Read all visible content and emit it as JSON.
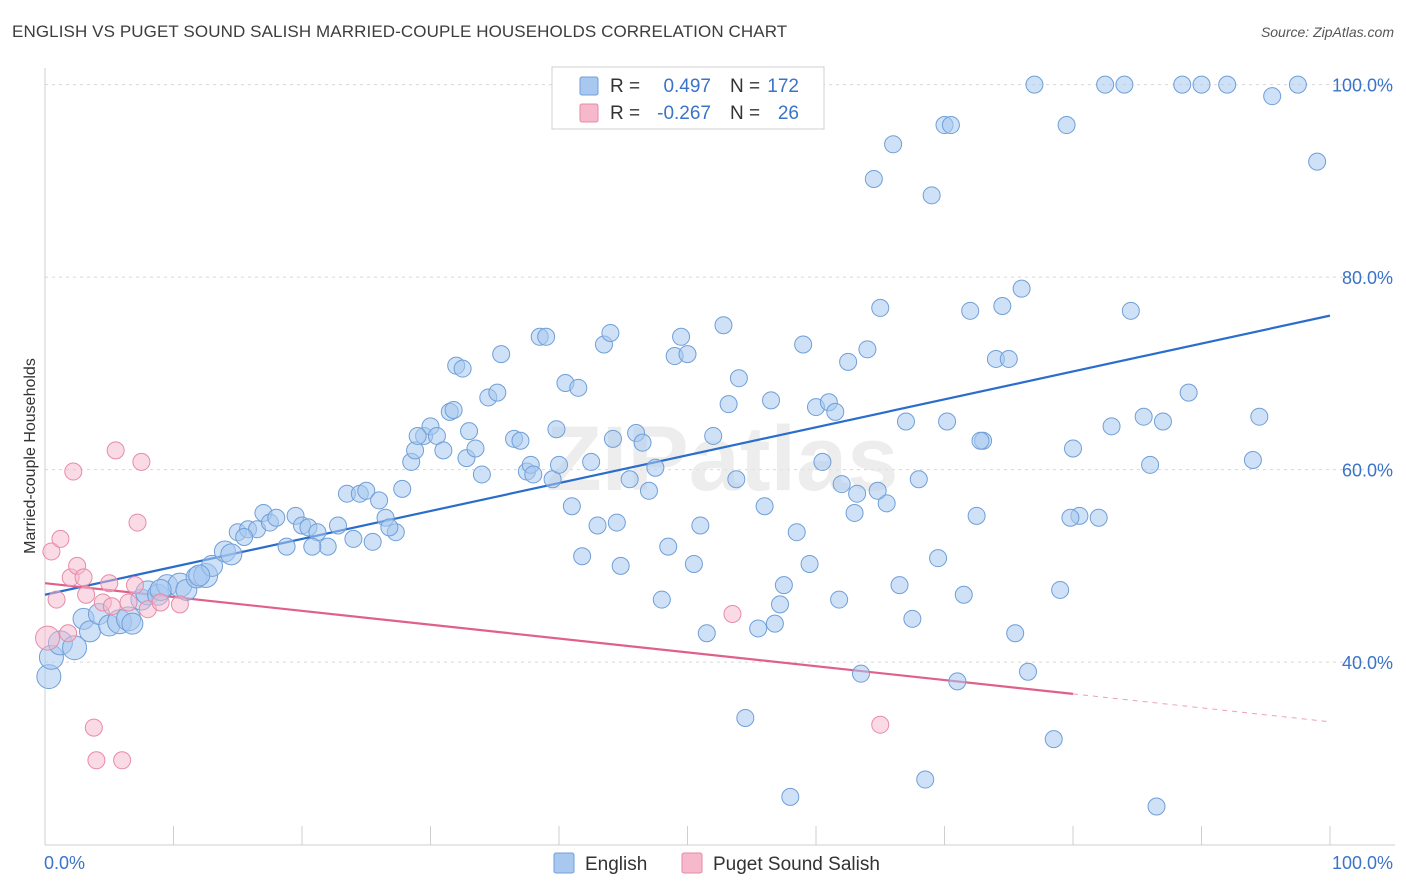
{
  "title": "ENGLISH VS PUGET SOUND SALISH MARRIED-COUPLE HOUSEHOLDS CORRELATION CHART",
  "source": "Source: ZipAtlas.com",
  "watermark": "ZIPatlas",
  "colors": {
    "english_fill": "#a8c8f0",
    "english_stroke": "#6f9fd8",
    "english_line": "#2a6dcc",
    "salish_fill": "#f6b8cb",
    "salish_stroke": "#e88aa8",
    "salish_line": "#e0608c",
    "value_text": "#3a74c8",
    "grid": "#d8d8d8"
  },
  "legend_top": [
    {
      "r_label": "R =",
      "r_value": "0.497",
      "n_label": "N =",
      "n_value": "172",
      "series": "english"
    },
    {
      "r_label": "R =",
      "r_value": "-0.267",
      "n_label": "N =",
      "n_value": "26",
      "series": "salish"
    }
  ],
  "legend_bottom": [
    {
      "label": "English",
      "series": "english"
    },
    {
      "label": "Puget Sound Salish",
      "series": "salish"
    }
  ],
  "chart_data": {
    "type": "scatter",
    "title": "ENGLISH VS PUGET SOUND SALISH MARRIED-COUPLE HOUSEHOLDS CORRELATION CHART",
    "xlabel": "",
    "ylabel": "Married-couple Households",
    "xlim": [
      0,
      100
    ],
    "ylim": [
      21,
      101
    ],
    "x_tick_labels": [
      {
        "value": 0,
        "label": "0.0%"
      },
      {
        "value": 100,
        "label": "100.0%"
      }
    ],
    "y_tick_labels": [
      {
        "value": 40,
        "label": "40.0%"
      },
      {
        "value": 60,
        "label": "60.0%"
      },
      {
        "value": 80,
        "label": "80.0%"
      },
      {
        "value": 100,
        "label": "100.0%"
      }
    ],
    "x_minor_ticks": [
      0,
      10,
      20,
      30,
      40,
      50,
      60,
      70,
      80,
      90,
      100
    ],
    "series": [
      {
        "name": "English",
        "key": "english",
        "R": 0.497,
        "N": 172,
        "trend": {
          "x0": 0,
          "y0": 47.0,
          "x1": 100,
          "y1": 76.0
        },
        "points": [
          [
            0.3,
            38.5,
            3
          ],
          [
            0.5,
            40.5,
            3
          ],
          [
            1.2,
            42.0,
            3
          ],
          [
            2.3,
            41.5,
            3
          ],
          [
            3.0,
            44.5,
            2
          ],
          [
            3.5,
            43.2,
            2
          ],
          [
            4.2,
            45.0,
            2
          ],
          [
            5.0,
            43.8,
            2
          ],
          [
            5.8,
            44.2,
            3
          ],
          [
            6.5,
            44.5,
            3
          ],
          [
            7.5,
            46.5,
            2
          ],
          [
            8.0,
            47.2,
            3
          ],
          [
            8.8,
            47.0,
            2
          ],
          [
            9.5,
            48.0,
            2
          ],
          [
            10.5,
            48.0,
            3
          ],
          [
            11.0,
            47.5,
            2
          ],
          [
            11.8,
            48.8,
            2
          ],
          [
            12.5,
            49.0,
            3
          ],
          [
            13.0,
            50.0,
            2
          ],
          [
            14.0,
            51.5,
            2
          ],
          [
            14.5,
            51.2,
            2
          ],
          [
            15.0,
            53.5,
            1
          ],
          [
            15.8,
            53.8,
            1
          ],
          [
            16.5,
            53.8,
            1
          ],
          [
            17.0,
            55.5,
            1
          ],
          [
            17.5,
            54.5,
            1
          ],
          [
            18.0,
            55.0,
            1
          ],
          [
            18.8,
            52.0,
            1
          ],
          [
            19.5,
            55.2,
            1
          ],
          [
            20.0,
            54.2,
            1
          ],
          [
            20.5,
            54.0,
            1
          ],
          [
            21.2,
            53.5,
            1
          ],
          [
            22.0,
            52.0,
            1
          ],
          [
            22.8,
            54.2,
            1
          ],
          [
            23.5,
            57.5,
            1
          ],
          [
            24.0,
            52.8,
            1
          ],
          [
            24.5,
            57.5,
            1
          ],
          [
            25.0,
            57.8,
            1
          ],
          [
            25.5,
            52.5,
            1
          ],
          [
            26.0,
            56.8,
            1
          ],
          [
            26.5,
            55.0,
            1
          ],
          [
            27.3,
            53.5,
            1
          ],
          [
            27.8,
            58.0,
            1
          ],
          [
            28.5,
            60.8,
            1
          ],
          [
            28.8,
            62.0,
            1
          ],
          [
            29.5,
            63.5,
            1
          ],
          [
            30.0,
            64.5,
            1
          ],
          [
            30.5,
            63.5,
            1
          ],
          [
            31.0,
            62.0,
            1
          ],
          [
            31.5,
            66.0,
            1
          ],
          [
            31.8,
            66.2,
            1
          ],
          [
            32.0,
            70.8,
            1
          ],
          [
            32.5,
            70.5,
            1
          ],
          [
            32.8,
            61.2,
            1
          ],
          [
            33.5,
            62.2,
            1
          ],
          [
            34.0,
            59.5,
            1
          ],
          [
            34.5,
            67.5,
            1
          ],
          [
            35.2,
            68.0,
            1
          ],
          [
            35.5,
            72.0,
            1
          ],
          [
            36.5,
            63.2,
            1
          ],
          [
            37.0,
            63.0,
            1
          ],
          [
            37.5,
            59.8,
            1
          ],
          [
            37.8,
            60.5,
            1
          ],
          [
            38.5,
            73.8,
            1
          ],
          [
            39.0,
            73.8,
            1
          ],
          [
            39.5,
            59.0,
            1
          ],
          [
            39.8,
            64.2,
            1
          ],
          [
            40.5,
            69.0,
            1
          ],
          [
            41.0,
            56.2,
            1
          ],
          [
            41.5,
            68.5,
            1
          ],
          [
            41.8,
            51.0,
            1
          ],
          [
            42.5,
            60.8,
            1
          ],
          [
            43.0,
            54.2,
            1
          ],
          [
            43.5,
            73.0,
            1
          ],
          [
            44.0,
            74.2,
            1
          ],
          [
            44.2,
            63.2,
            1
          ],
          [
            44.5,
            54.5,
            1
          ],
          [
            44.8,
            50.0,
            1
          ],
          [
            45.5,
            59.0,
            1
          ],
          [
            46.0,
            63.8,
            1
          ],
          [
            46.5,
            62.8,
            1
          ],
          [
            47.0,
            57.8,
            1
          ],
          [
            47.5,
            60.2,
            1
          ],
          [
            48.0,
            46.5,
            1
          ],
          [
            48.5,
            52.0,
            1
          ],
          [
            49.0,
            71.8,
            1
          ],
          [
            49.5,
            73.8,
            1
          ],
          [
            50.0,
            72.0,
            1
          ],
          [
            50.5,
            50.2,
            1
          ],
          [
            51.0,
            54.2,
            1
          ],
          [
            51.5,
            43.0,
            1
          ],
          [
            52.0,
            63.5,
            1
          ],
          [
            52.8,
            75.0,
            1
          ],
          [
            53.2,
            66.8,
            1
          ],
          [
            53.8,
            59.0,
            1
          ],
          [
            54.0,
            69.5,
            1
          ],
          [
            54.5,
            34.2,
            1
          ],
          [
            55.5,
            43.5,
            1
          ],
          [
            56.0,
            56.2,
            1
          ],
          [
            56.5,
            67.2,
            1
          ],
          [
            56.8,
            44.0,
            1
          ],
          [
            57.2,
            46.0,
            1
          ],
          [
            57.5,
            48.0,
            1
          ],
          [
            58.5,
            53.5,
            1
          ],
          [
            59.0,
            73.0,
            1
          ],
          [
            59.5,
            50.2,
            1
          ],
          [
            60.0,
            66.5,
            1
          ],
          [
            60.5,
            60.8,
            1
          ],
          [
            61.0,
            67.0,
            1
          ],
          [
            61.5,
            66.0,
            1
          ],
          [
            62.0,
            58.5,
            1
          ],
          [
            62.5,
            71.2,
            1
          ],
          [
            63.0,
            55.5,
            1
          ],
          [
            63.5,
            38.8,
            1
          ],
          [
            64.0,
            72.5,
            1
          ],
          [
            64.5,
            90.2,
            1
          ],
          [
            65.0,
            76.8,
            1
          ],
          [
            65.5,
            56.5,
            1
          ],
          [
            66.0,
            93.8,
            1
          ],
          [
            66.5,
            48.0,
            1
          ],
          [
            67.0,
            65.0,
            1
          ],
          [
            67.5,
            44.5,
            1
          ],
          [
            68.0,
            59.0,
            1
          ],
          [
            68.5,
            27.8,
            1
          ],
          [
            69.0,
            88.5,
            1
          ],
          [
            69.5,
            50.8,
            1
          ],
          [
            70.0,
            95.8,
            1
          ],
          [
            70.5,
            95.8,
            1
          ],
          [
            71.0,
            38.0,
            1
          ],
          [
            72.0,
            76.5,
            1
          ],
          [
            72.5,
            55.2,
            1
          ],
          [
            73.0,
            63.0,
            1
          ],
          [
            74.0,
            71.5,
            1
          ],
          [
            74.5,
            77.0,
            1
          ],
          [
            75.0,
            71.5,
            1
          ],
          [
            75.5,
            43.0,
            1
          ],
          [
            76.0,
            78.8,
            1
          ],
          [
            76.5,
            39.0,
            1
          ],
          [
            77.0,
            100.0,
            1
          ],
          [
            78.5,
            32.0,
            1
          ],
          [
            79.0,
            47.5,
            1
          ],
          [
            79.5,
            95.8,
            1
          ],
          [
            80.0,
            62.2,
            1
          ],
          [
            80.5,
            55.2,
            1
          ],
          [
            82.5,
            100.0,
            1
          ],
          [
            83.0,
            64.5,
            1
          ],
          [
            84.0,
            100.0,
            1
          ],
          [
            84.5,
            76.5,
            1
          ],
          [
            86.5,
            25.0,
            1
          ],
          [
            87.0,
            65.0,
            1
          ],
          [
            88.5,
            100.0,
            1
          ],
          [
            89.0,
            68.0,
            1
          ],
          [
            90.0,
            100.0,
            1
          ],
          [
            92.0,
            100.0,
            1
          ],
          [
            94.0,
            61.0,
            1
          ],
          [
            94.5,
            65.5,
            1
          ],
          [
            95.5,
            98.8,
            1
          ],
          [
            97.5,
            100.0,
            1
          ],
          [
            99.0,
            92.0,
            1
          ],
          [
            58.0,
            26.0,
            1
          ],
          [
            61.8,
            46.5,
            1
          ],
          [
            63.2,
            57.5,
            1
          ],
          [
            64.8,
            57.8,
            1
          ],
          [
            70.2,
            65.0,
            1
          ],
          [
            71.5,
            47.0,
            1
          ],
          [
            72.8,
            63.0,
            1
          ],
          [
            79.8,
            55.0,
            1
          ],
          [
            82.0,
            55.0,
            1
          ],
          [
            85.5,
            65.5,
            1
          ],
          [
            86.0,
            60.5,
            1
          ],
          [
            40.0,
            60.5,
            1
          ],
          [
            38.0,
            59.5,
            1
          ],
          [
            33.0,
            64.0,
            1
          ],
          [
            29.0,
            63.5,
            1
          ],
          [
            26.8,
            54.0,
            1
          ],
          [
            20.8,
            52.0,
            1
          ],
          [
            15.5,
            53.0,
            1
          ],
          [
            12.0,
            49.0,
            2
          ],
          [
            9.0,
            47.5,
            2
          ],
          [
            6.8,
            44.0,
            2
          ]
        ]
      },
      {
        "name": "Puget Sound Salish",
        "key": "salish",
        "R": -0.267,
        "N": 26,
        "trend": {
          "x0": 0,
          "y0": 48.2,
          "x1": 80,
          "y1": 36.7,
          "dash_x1": 100,
          "dash_y1": 33.8
        },
        "points": [
          [
            0.2,
            42.5,
            3
          ],
          [
            0.5,
            51.5,
            1
          ],
          [
            0.9,
            46.5,
            1
          ],
          [
            1.2,
            52.8,
            1
          ],
          [
            1.8,
            43.0,
            1
          ],
          [
            2.0,
            48.8,
            1
          ],
          [
            2.2,
            59.8,
            1
          ],
          [
            2.5,
            50.0,
            1
          ],
          [
            3.0,
            48.8,
            1
          ],
          [
            3.2,
            47.0,
            1
          ],
          [
            3.8,
            33.2,
            1
          ],
          [
            4.0,
            29.8,
            1
          ],
          [
            4.5,
            46.2,
            1
          ],
          [
            5.0,
            48.2,
            1
          ],
          [
            5.2,
            45.8,
            1
          ],
          [
            5.5,
            62.0,
            1
          ],
          [
            6.0,
            29.8,
            1
          ],
          [
            6.5,
            46.2,
            1
          ],
          [
            7.0,
            48.0,
            1
          ],
          [
            7.2,
            54.5,
            1
          ],
          [
            7.5,
            60.8,
            1
          ],
          [
            8.0,
            45.5,
            1
          ],
          [
            9.0,
            46.2,
            1
          ],
          [
            10.5,
            46.0,
            1
          ],
          [
            53.5,
            45.0,
            1
          ],
          [
            65.0,
            33.5,
            1
          ]
        ]
      }
    ]
  }
}
